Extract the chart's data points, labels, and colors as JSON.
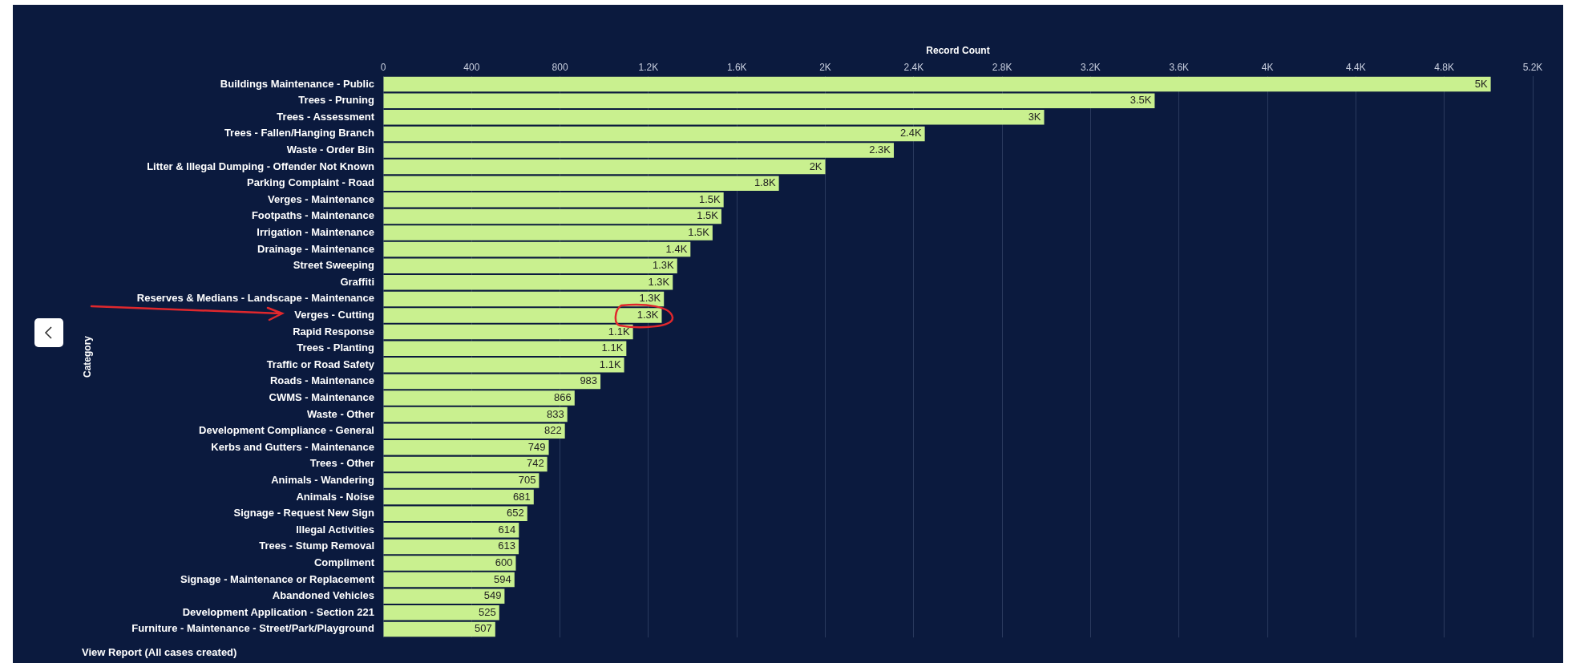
{
  "chart_data": {
    "type": "bar",
    "orientation": "horizontal",
    "xlabel": "Record Count",
    "ylabel": "Category",
    "categories": [
      "Buildings Maintenance - Public",
      "Trees - Pruning",
      "Trees - Assessment",
      "Trees - Fallen/Hanging Branch",
      "Waste - Order Bin",
      "Litter & Illegal Dumping - Offender Not Known",
      "Parking Complaint - Road",
      "Verges - Maintenance",
      "Footpaths - Maintenance",
      "Irrigation - Maintenance",
      "Drainage - Maintenance",
      "Street Sweeping",
      "Graffiti",
      "Reserves & Medians - Landscape - Maintenance",
      "Verges - Cutting",
      "Rapid Response",
      "Trees - Planting",
      "Traffic or Road Safety",
      "Roads - Maintenance",
      "CWMS - Maintenance",
      "Waste - Other",
      "Development Compliance - General",
      "Kerbs and Gutters - Maintenance",
      "Trees - Other",
      "Animals - Wandering",
      "Animals - Noise",
      "Signage - Request New Sign",
      "Illegal Activities",
      "Trees - Stump Removal",
      "Compliment",
      "Signage - Maintenance or Replacement",
      "Abandoned Vehicles",
      "Development Application - Section 221",
      "Furniture - Maintenance - Street/Park/Playground"
    ],
    "values": [
      5010,
      3490,
      2990,
      2450,
      2310,
      2000,
      1790,
      1540,
      1530,
      1490,
      1390,
      1330,
      1310,
      1270,
      1260,
      1130,
      1100,
      1090,
      983,
      866,
      833,
      822,
      749,
      742,
      705,
      681,
      652,
      614,
      613,
      600,
      594,
      549,
      525,
      507
    ],
    "value_labels": [
      "5K",
      "3.5K",
      "3K",
      "2.4K",
      "2.3K",
      "2K",
      "1.8K",
      "1.5K",
      "1.5K",
      "1.5K",
      "1.4K",
      "1.3K",
      "1.3K",
      "1.3K",
      "1.3K",
      "1.1K",
      "1.1K",
      "1.1K",
      "983",
      "866",
      "833",
      "822",
      "749",
      "742",
      "705",
      "681",
      "652",
      "614",
      "613",
      "600",
      "594",
      "549",
      "525",
      "507"
    ],
    "color": "#c9f08f",
    "xlim": [
      0,
      5200
    ],
    "xticks": [
      0,
      400,
      800,
      {
        "value": 1200,
        "label": "1.2K"
      },
      {
        "value": 1600,
        "label": "1.6K"
      },
      {
        "value": 2000,
        "label": "2K"
      },
      {
        "value": 2400,
        "label": "2.4K"
      },
      {
        "value": 2800,
        "label": "2.8K"
      },
      {
        "value": 3200,
        "label": "3.2K"
      },
      {
        "value": 3600,
        "label": "3.6K"
      },
      {
        "value": 4000,
        "label": "4K"
      },
      {
        "value": 4400,
        "label": "4.4K"
      },
      {
        "value": 4800,
        "label": "4.8K"
      },
      {
        "value": 5200,
        "label": "5.2K"
      }
    ],
    "grid": "x",
    "legend": false,
    "annotations": [
      "View Report (All cases created)"
    ]
  }
}
